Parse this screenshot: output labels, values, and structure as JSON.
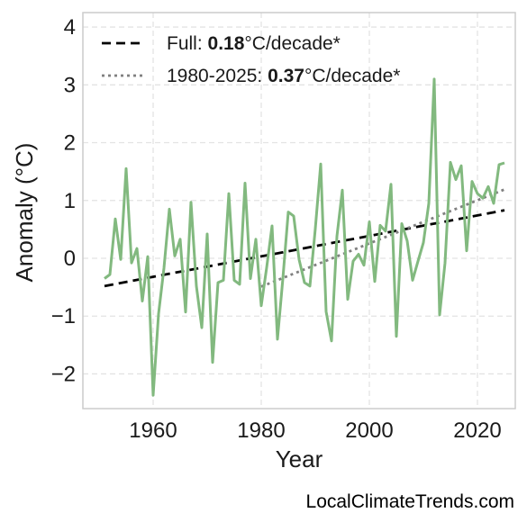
{
  "chart_data": {
    "type": "line",
    "xlabel": "Year",
    "ylabel": "Anomaly (°C)",
    "xlim": [
      1947,
      2027
    ],
    "ylim": [
      -2.6,
      4.25
    ],
    "xticks": [
      1960,
      1980,
      2000,
      2020
    ],
    "yticks": [
      -2,
      -1,
      0,
      1,
      2,
      3,
      4
    ],
    "ytick_labels": [
      "−2",
      "−1",
      "0",
      "1",
      "2",
      "3",
      "4"
    ],
    "grid": true,
    "legend_position": "top-left",
    "series": [
      {
        "color": "#82b97f",
        "x": [
          1951,
          1952,
          1953,
          1954,
          1955,
          1956,
          1957,
          1958,
          1959,
          1960,
          1961,
          1962,
          1963,
          1964,
          1965,
          1966,
          1967,
          1968,
          1969,
          1970,
          1971,
          1972,
          1973,
          1974,
          1975,
          1976,
          1977,
          1978,
          1979,
          1980,
          1981,
          1982,
          1983,
          1984,
          1985,
          1986,
          1987,
          1988,
          1989,
          1990,
          1991,
          1992,
          1993,
          1994,
          1995,
          1996,
          1997,
          1998,
          1999,
          2000,
          2001,
          2002,
          2003,
          2004,
          2005,
          2006,
          2007,
          2008,
          2009,
          2010,
          2011,
          2012,
          2013,
          2014,
          2015,
          2016,
          2017,
          2018,
          2019,
          2020,
          2021,
          2022,
          2023,
          2024,
          2025
        ],
        "y": [
          -0.35,
          -0.28,
          0.68,
          -0.02,
          1.55,
          -0.08,
          0.17,
          -0.74,
          0.03,
          -2.37,
          -0.96,
          -0.17,
          0.85,
          0.04,
          0.33,
          -0.93,
          0.97,
          -0.48,
          -1.2,
          0.42,
          -1.8,
          -0.42,
          -0.38,
          1.12,
          -0.38,
          -0.45,
          1.3,
          -0.35,
          0.33,
          -0.82,
          -0.16,
          0.56,
          -1.4,
          -0.35,
          0.8,
          0.73,
          -0.02,
          -0.42,
          -0.48,
          0.51,
          1.63,
          -0.92,
          -1.43,
          0.38,
          1.18,
          -0.71,
          -0.05,
          0.07,
          -0.12,
          0.63,
          -0.4,
          0.57,
          0.47,
          1.28,
          -1.35,
          0.6,
          0.3,
          -0.38,
          -0.05,
          0.27,
          0.95,
          3.1,
          -0.98,
          -0.08,
          1.66,
          1.36,
          1.6,
          0.13,
          1.33,
          1.12,
          1.04,
          1.24,
          0.95,
          1.62,
          1.65
        ]
      }
    ],
    "trends": [
      {
        "label_prefix": "Full: ",
        "value": "0.18",
        "unit": "°C/decade*",
        "style": "dashed",
        "color": "#000000",
        "x": [
          1951,
          2025
        ],
        "y": [
          -0.48,
          0.83
        ]
      },
      {
        "label_prefix": "1980-2025: ",
        "value": "0.37",
        "unit": "°C/decade*",
        "style": "dotted",
        "color": "#808080",
        "x": [
          1980,
          2025
        ],
        "y": [
          -0.49,
          1.19
        ]
      }
    ]
  },
  "watermark": "LocalClimateTrends.com"
}
